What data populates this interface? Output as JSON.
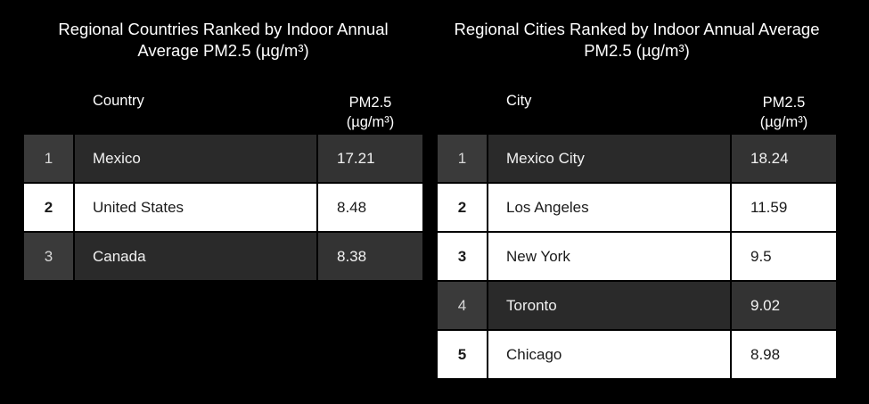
{
  "chart_data": [
    {
      "type": "table",
      "title": "Regional Countries Ranked by Indoor Annual Average PM2.5 (µg/m³)",
      "title_lines": [
        "Regional Countries Ranked by Indoor Annual",
        "Average PM2.5 (µg/m³)"
      ],
      "columns": [
        "",
        "Country",
        "PM2.5 (µg/m³)"
      ],
      "header_value_lines": [
        "PM2.5",
        "(µg/m³)"
      ],
      "rows": [
        {
          "rank": "1",
          "name": "Mexico",
          "value": "17.21",
          "style": "dark"
        },
        {
          "rank": "2",
          "name": "United States",
          "value": "8.48",
          "style": "light"
        },
        {
          "rank": "3",
          "name": "Canada",
          "value": "8.38",
          "style": "dark"
        }
      ]
    },
    {
      "type": "table",
      "title": "Regional Cities Ranked by Indoor Annual Average PM2.5 (µg/m³)",
      "title_lines": [
        "Regional Cities Ranked by Indoor Annual Average",
        "PM2.5 (µg/m³)"
      ],
      "columns": [
        "",
        "City",
        "PM2.5 (µg/m³)"
      ],
      "header_value_lines": [
        "PM2.5",
        "(µg/m³)"
      ],
      "rows": [
        {
          "rank": "1",
          "name": "Mexico City",
          "value": "18.24",
          "style": "dark"
        },
        {
          "rank": "2",
          "name": "Los Angeles",
          "value": "11.59",
          "style": "light"
        },
        {
          "rank": "3",
          "name": "New York",
          "value": "9.5",
          "style": "light"
        },
        {
          "rank": "4",
          "name": "Toronto",
          "value": "9.02",
          "style": "dark"
        },
        {
          "rank": "5",
          "name": "Chicago",
          "value": "8.98",
          "style": "light"
        }
      ]
    }
  ],
  "colors": {
    "background": "#000000",
    "dark_row": "#2e2e2e",
    "light_row": "#ffffff",
    "text_light": "#ffffff",
    "text_dark": "#1a1a1a"
  }
}
